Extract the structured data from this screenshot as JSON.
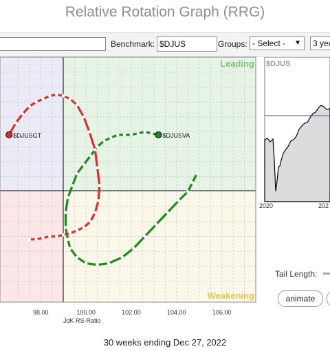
{
  "app": {
    "title": "Relative Rotation Graph (RRG)"
  },
  "toolbar": {
    "symbols_value": "",
    "benchmark_label": "Benchmark:",
    "benchmark_value": "$DJUS",
    "groups_label": "Groups:",
    "groups_value": "- Select -",
    "period_value": "3 yea"
  },
  "quadrants": {
    "leading": "Leading",
    "weakening": "Weakening"
  },
  "colors": {
    "leading_bg": "#e6f4e6",
    "weakening_bg": "#fbf8ea",
    "lagging_bg": "#fbe6e8",
    "improving_bg": "#ebebf7",
    "leading_text": "#7fbf7f",
    "weakening_text": "#e8c44a",
    "green_tail": "#1e8a1e",
    "red_tail": "#d93030"
  },
  "chart_data": {
    "type": "scatter",
    "xlabel": "JdK RS-Ratio",
    "x_ticks": [
      "98.00",
      "100.00",
      "102.00",
      "104.00",
      "106.00"
    ],
    "xlim": [
      96.2,
      107.5
    ],
    "ylim": [
      96.3,
      104.5
    ],
    "series": [
      {
        "name": "$DJUSVA",
        "color": "#1e8a1e",
        "x": [
          103.2,
          102.9,
          102.6,
          102.3,
          102.0,
          101.7,
          101.4,
          101.1,
          100.8,
          100.5,
          100.2,
          99.9,
          99.6,
          99.4,
          99.2,
          99.1,
          99.1,
          99.2,
          99.3,
          99.6,
          100.0,
          100.5,
          101.0,
          101.6,
          102.1,
          102.6,
          103.1,
          103.6,
          104.1,
          104.5,
          104.7,
          104.9
        ],
        "y": [
          101.9,
          101.95,
          102.0,
          101.95,
          101.9,
          101.9,
          101.9,
          101.8,
          101.7,
          101.5,
          101.2,
          100.9,
          100.6,
          100.2,
          99.8,
          99.3,
          98.8,
          98.4,
          98.1,
          97.8,
          97.6,
          97.55,
          97.6,
          97.8,
          98.1,
          98.5,
          98.9,
          99.3,
          99.7,
          100.0,
          100.3,
          100.6
        ]
      },
      {
        "name": "$DJUSGT",
        "color": "#d93030",
        "x": [
          96.6,
          96.9,
          97.2,
          97.5,
          97.8,
          98.1,
          98.4,
          98.7,
          99.0,
          99.3,
          99.6,
          99.9,
          100.15,
          100.4,
          100.5,
          100.6,
          100.55,
          100.4,
          100.2,
          99.9,
          99.6,
          99.3,
          99.0,
          98.7,
          98.4,
          98.1,
          97.8,
          97.5
        ],
        "y": [
          101.9,
          102.3,
          102.6,
          102.85,
          103.0,
          103.1,
          103.2,
          103.25,
          103.2,
          103.1,
          102.9,
          102.5,
          102.0,
          101.4,
          100.8,
          100.2,
          99.7,
          99.3,
          99.0,
          98.8,
          98.7,
          98.6,
          98.55,
          98.5,
          98.5,
          98.45,
          98.4,
          98.4
        ]
      }
    ],
    "labels": [
      "$DJUSVA",
      "$DJUSGT"
    ]
  },
  "mini_chart": {
    "title": "$DJUS",
    "x_ticks": [
      "2020",
      "202"
    ]
  },
  "controls": {
    "tail_length_label": "Tail Length:",
    "animate_label": "animate"
  },
  "footer": {
    "caption": "30 weeks ending Dec 27, 2022"
  }
}
